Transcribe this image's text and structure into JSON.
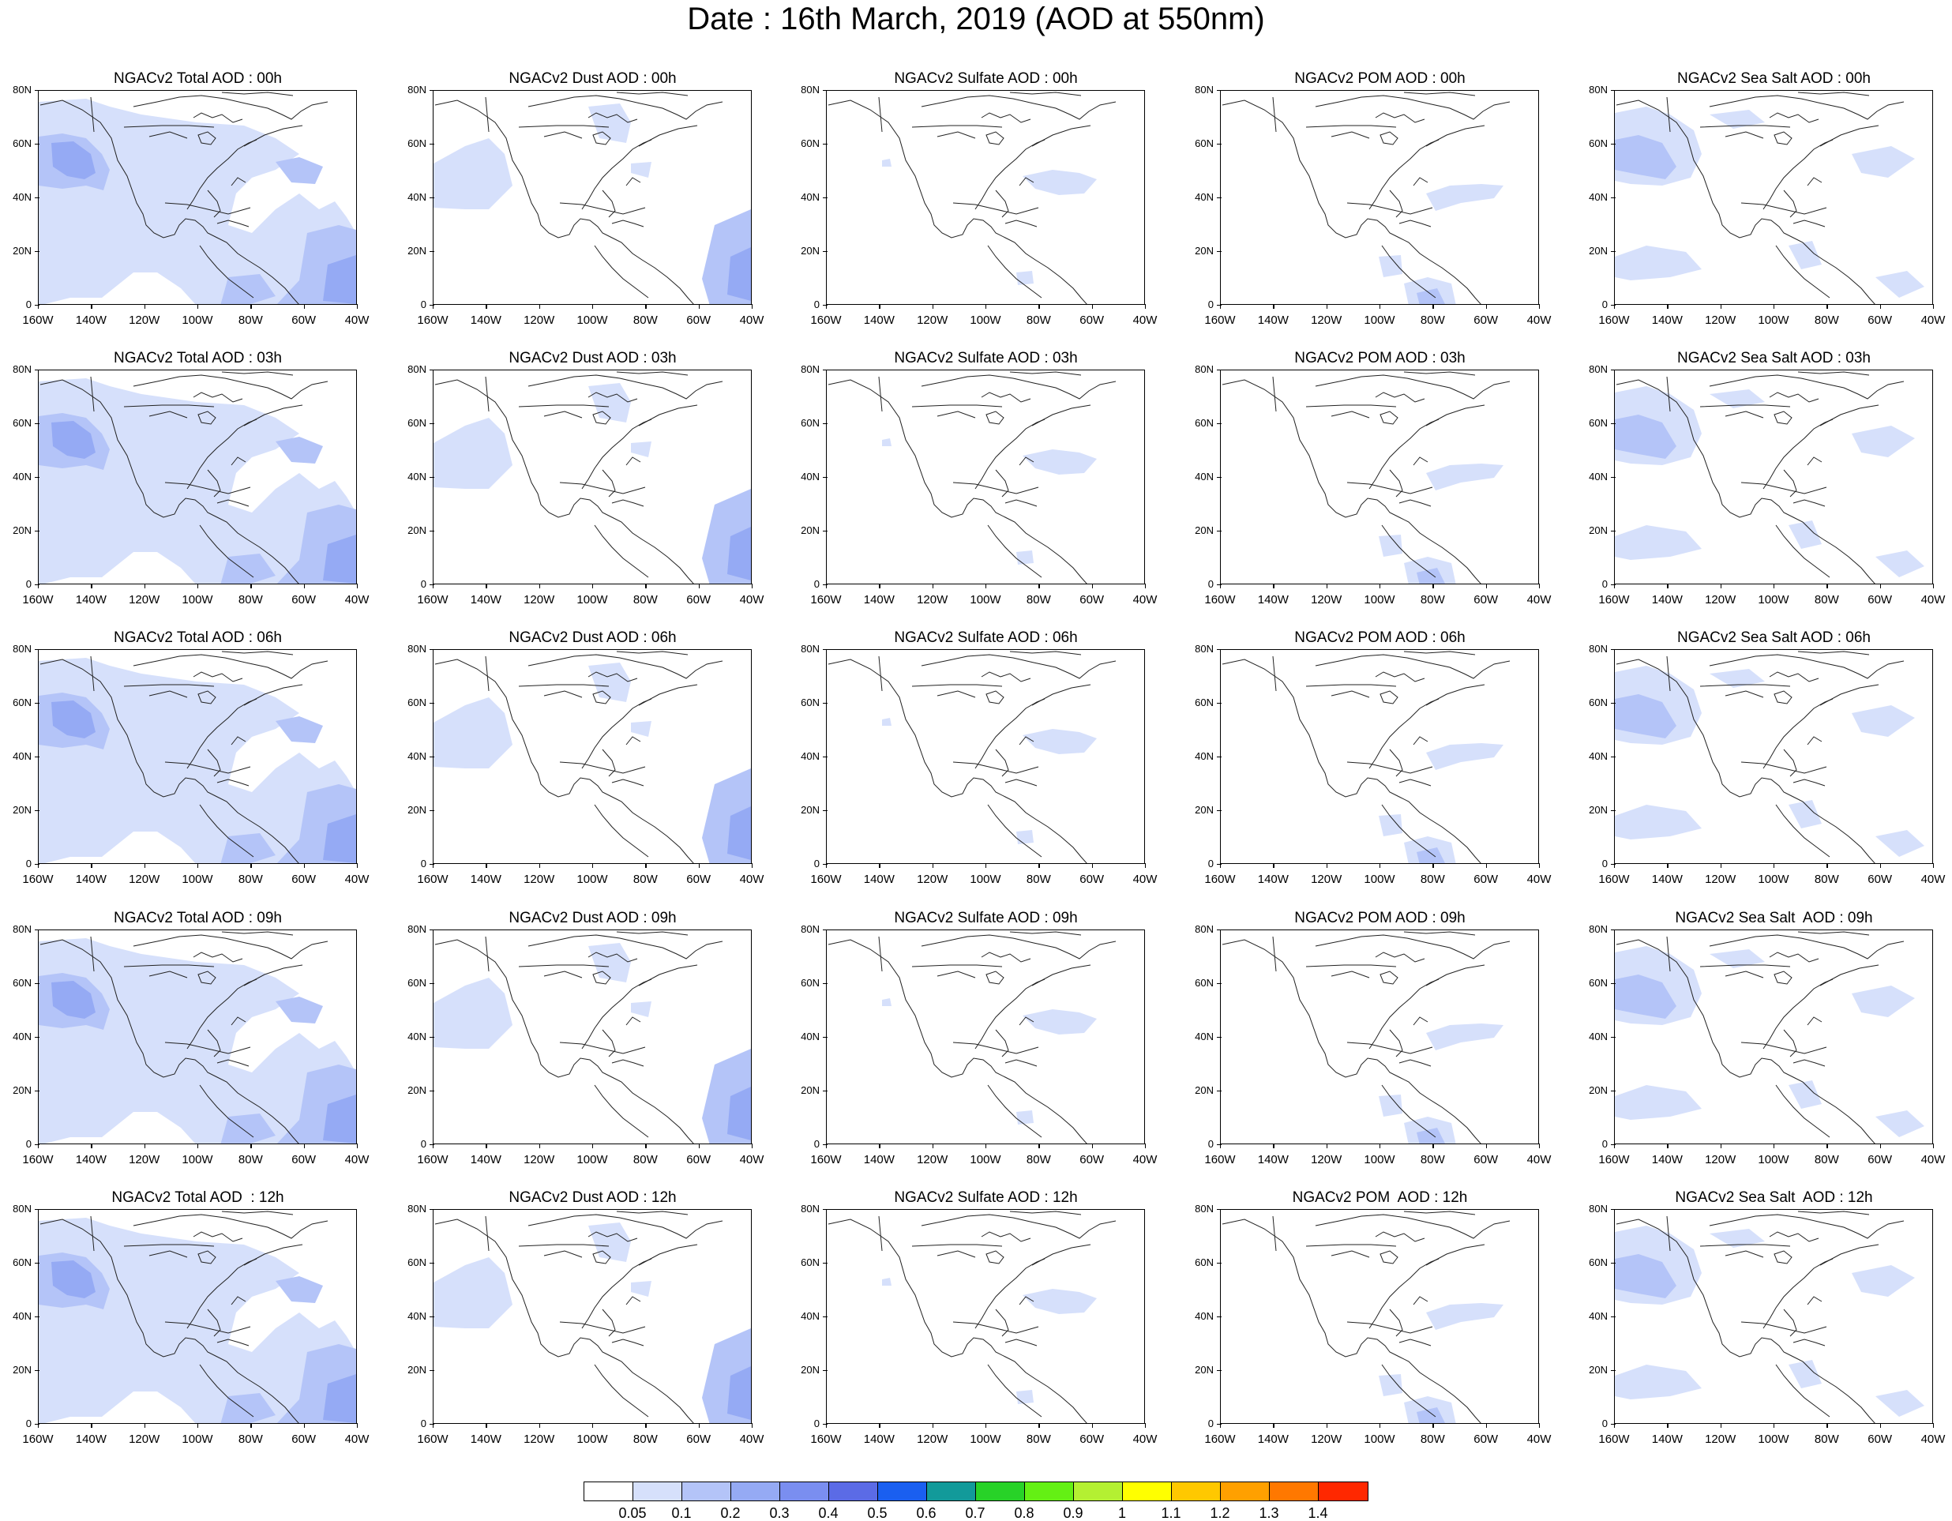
{
  "title": "Date : 16th March, 2019 (AOD at 550nm)",
  "map": {
    "projection": "cylindrical equidistant",
    "lon_range": [
      -160,
      -40
    ],
    "lat_range": [
      0,
      80
    ],
    "lat_tick_labels": [
      "80N",
      "60N",
      "40N",
      "20N",
      "0"
    ],
    "lon_tick_labels": [
      "160W",
      "140W",
      "120W",
      "100W",
      "80W",
      "60W",
      "40W"
    ]
  },
  "panels": [
    {
      "title": "NGACv2 Total AOD : 00h",
      "species": "total"
    },
    {
      "title": "NGACv2 Dust AOD : 00h",
      "species": "dust"
    },
    {
      "title": "NGACv2 Sulfate AOD : 00h",
      "species": "sulfate"
    },
    {
      "title": "NGACv2 POM AOD : 00h",
      "species": "pom"
    },
    {
      "title": "NGACv2 Sea Salt AOD : 00h",
      "species": "seasalt"
    },
    {
      "title": "NGACv2 Total AOD : 03h",
      "species": "total"
    },
    {
      "title": "NGACv2 Dust AOD : 03h",
      "species": "dust"
    },
    {
      "title": "NGACv2 Sulfate AOD : 03h",
      "species": "sulfate"
    },
    {
      "title": "NGACv2 POM AOD : 03h",
      "species": "pom"
    },
    {
      "title": "NGACv2 Sea Salt AOD : 03h",
      "species": "seasalt"
    },
    {
      "title": "NGACv2 Total AOD : 06h",
      "species": "total"
    },
    {
      "title": "NGACv2 Dust AOD : 06h",
      "species": "dust"
    },
    {
      "title": "NGACv2 Sulfate AOD : 06h",
      "species": "sulfate"
    },
    {
      "title": "NGACv2 POM AOD : 06h",
      "species": "pom"
    },
    {
      "title": "NGACv2 Sea Salt AOD : 06h",
      "species": "seasalt"
    },
    {
      "title": "NGACv2 Total AOD : 09h",
      "species": "total"
    },
    {
      "title": "NGACv2 Dust AOD : 09h",
      "species": "dust"
    },
    {
      "title": "NGACv2 Sulfate AOD : 09h",
      "species": "sulfate"
    },
    {
      "title": "NGACv2 POM AOD : 09h",
      "species": "pom"
    },
    {
      "title": "NGACv2 Sea Salt  AOD : 09h",
      "species": "seasalt"
    },
    {
      "title": "NGACv2 Total AOD  : 12h",
      "species": "total"
    },
    {
      "title": "NGACv2 Dust AOD : 12h",
      "species": "dust"
    },
    {
      "title": "NGACv2 Sulfate AOD : 12h",
      "species": "sulfate"
    },
    {
      "title": "NGACv2 POM  AOD : 12h",
      "species": "pom"
    },
    {
      "title": "NGACv2 Sea Salt  AOD : 12h",
      "species": "seasalt"
    }
  ],
  "colorbar": {
    "labels": [
      "0.05",
      "0.1",
      "0.2",
      "0.3",
      "0.4",
      "0.5",
      "0.6",
      "0.7",
      "0.8",
      "0.9",
      "1",
      "1.1",
      "1.2",
      "1.3",
      "1.4"
    ],
    "colors": [
      "#ffffff",
      "#d6e0fb",
      "#b4c4f8",
      "#95aaf4",
      "#7a8ef0",
      "#5b6be6",
      "#1a5ff0",
      "#129a9a",
      "#28d228",
      "#64f014",
      "#b4f032",
      "#ffff00",
      "#ffc800",
      "#ffa000",
      "#ff7800",
      "#ff2800"
    ]
  }
}
